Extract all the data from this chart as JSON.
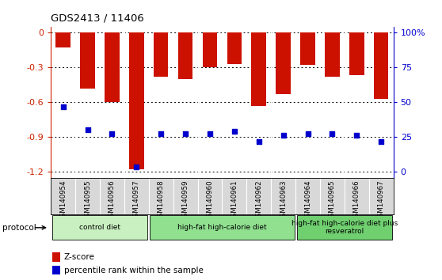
{
  "title": "GDS2413 / 11406",
  "samples": [
    "GSM140954",
    "GSM140955",
    "GSM140956",
    "GSM140957",
    "GSM140958",
    "GSM140959",
    "GSM140960",
    "GSM140961",
    "GSM140962",
    "GSM140963",
    "GSM140964",
    "GSM140965",
    "GSM140966",
    "GSM140967"
  ],
  "z_scores": [
    -0.13,
    -0.48,
    -0.6,
    -1.18,
    -0.38,
    -0.4,
    -0.3,
    -0.27,
    -0.63,
    -0.53,
    -0.28,
    -0.38,
    -0.37,
    -0.57
  ],
  "percentile_ranks": [
    47,
    32,
    29,
    7,
    29,
    29,
    29,
    31,
    24,
    28,
    29,
    29,
    28,
    24
  ],
  "ylim_left": [
    -1.25,
    0.05
  ],
  "ylim_right": [
    -1.25,
    0.05
  ],
  "left_ticks": [
    0,
    -0.3,
    -0.6,
    -0.9,
    -1.2
  ],
  "right_ticks": [
    0,
    25,
    50,
    75,
    100
  ],
  "right_tick_positions": [
    0.0,
    -0.3,
    -0.6,
    -0.9,
    -1.2
  ],
  "groups": [
    {
      "label": "control diet",
      "start": 0,
      "end": 4,
      "color": "#c8f0c0"
    },
    {
      "label": "high-fat high-calorie diet",
      "start": 4,
      "end": 10,
      "color": "#90e090"
    },
    {
      "label": "high-fat high-calorie diet plus\nresveratrol",
      "start": 10,
      "end": 14,
      "color": "#70d070"
    }
  ],
  "bar_color": "#cc1100",
  "dot_color": "#0000cc",
  "bg_color": "#d8d8d8",
  "left_tick_color": "#cc2200",
  "right_tick_color": "#0000cc",
  "legend_items": [
    "Z-score",
    "percentile rank within the sample"
  ],
  "protocol_label": "protocol"
}
